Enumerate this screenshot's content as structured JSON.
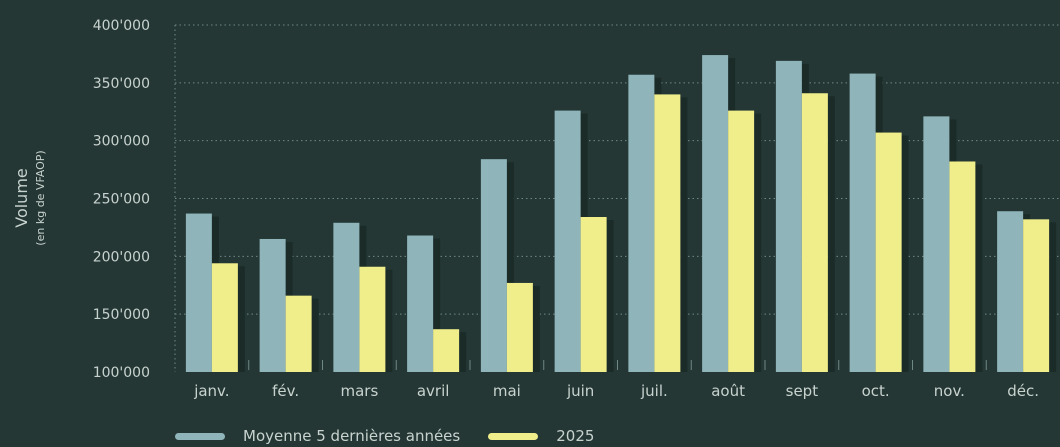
{
  "chart_data": {
    "type": "bar",
    "categories": [
      "janv.",
      "fév.",
      "mars",
      "avril",
      "mai",
      "juin",
      "juil.",
      "août",
      "sept",
      "oct.",
      "nov.",
      "déc."
    ],
    "series": [
      {
        "name": "Moyenne 5 dernières années",
        "color": "#8fb5bb",
        "values": [
          237000,
          215000,
          229000,
          218000,
          284000,
          326000,
          357000,
          374000,
          369000,
          358000,
          321000,
          239000
        ]
      },
      {
        "name": "2025",
        "color": "#f0ee8a",
        "values": [
          194000,
          166000,
          191000,
          137000,
          177000,
          234000,
          340000,
          326000,
          341000,
          307000,
          282000,
          232000
        ]
      }
    ],
    "ylabel": "Volume",
    "ylabel_sub": "(en kg de VFAOP)",
    "yticks": [
      "400'000",
      "350'000",
      "300'000",
      "250'000",
      "200'000",
      "150'000",
      "100'000"
    ],
    "ytick_values": [
      400000,
      350000,
      300000,
      250000,
      200000,
      150000,
      100000
    ],
    "ylim": [
      100000,
      400000
    ],
    "grid": true,
    "legend_position": "bottom-left"
  }
}
